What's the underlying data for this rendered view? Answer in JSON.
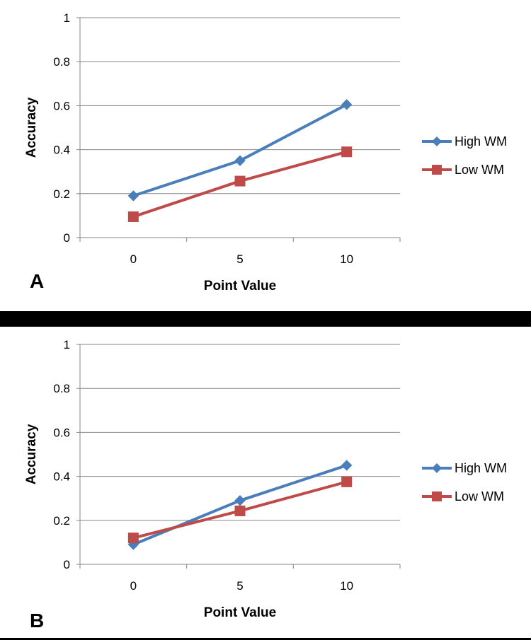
{
  "chart_data": [
    {
      "type": "line",
      "panel_label": "A",
      "xlabel": "Point Value",
      "ylabel": "Accuracy",
      "categories": [
        "0",
        "5",
        "10"
      ],
      "ylim": [
        0,
        1
      ],
      "yticks": [
        "0",
        "0.2",
        "0.4",
        "0.6",
        "0.8",
        "1"
      ],
      "grid": true,
      "legend": "right",
      "series": [
        {
          "name": "High WM",
          "values": [
            0.19,
            0.35,
            0.605
          ],
          "color": "#4a7ebb",
          "marker": "diamond"
        },
        {
          "name": "Low WM",
          "values": [
            0.095,
            0.257,
            0.39
          ],
          "color": "#be4b48",
          "marker": "square"
        }
      ]
    },
    {
      "type": "line",
      "panel_label": "B",
      "xlabel": "Point Value",
      "ylabel": "Accuracy",
      "categories": [
        "0",
        "5",
        "10"
      ],
      "ylim": [
        0,
        1
      ],
      "yticks": [
        "0",
        "0.2",
        "0.4",
        "0.6",
        "0.8",
        "1"
      ],
      "grid": true,
      "legend": "right",
      "series": [
        {
          "name": "High WM",
          "values": [
            0.09,
            0.29,
            0.45
          ],
          "color": "#4a7ebb",
          "marker": "diamond"
        },
        {
          "name": "Low WM",
          "values": [
            0.12,
            0.243,
            0.375
          ],
          "color": "#be4b48",
          "marker": "square"
        }
      ]
    }
  ]
}
